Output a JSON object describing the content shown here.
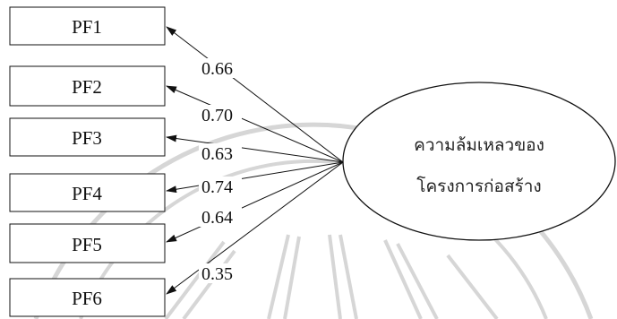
{
  "indicators": [
    {
      "label": "PF1",
      "loading": "0.66"
    },
    {
      "label": "PF2",
      "loading": "0.70"
    },
    {
      "label": "PF3",
      "loading": "0.63"
    },
    {
      "label": "PF4",
      "loading": "0.74"
    },
    {
      "label": "PF5",
      "loading": "0.64"
    },
    {
      "label": "PF6",
      "loading": "0.35"
    }
  ],
  "factor": {
    "line1": "ความล้มเหลวของ",
    "line2": "โครงการก่อสร้าง"
  },
  "colors": {
    "stroke": "#111111",
    "watermark": "#d6d6d6"
  }
}
